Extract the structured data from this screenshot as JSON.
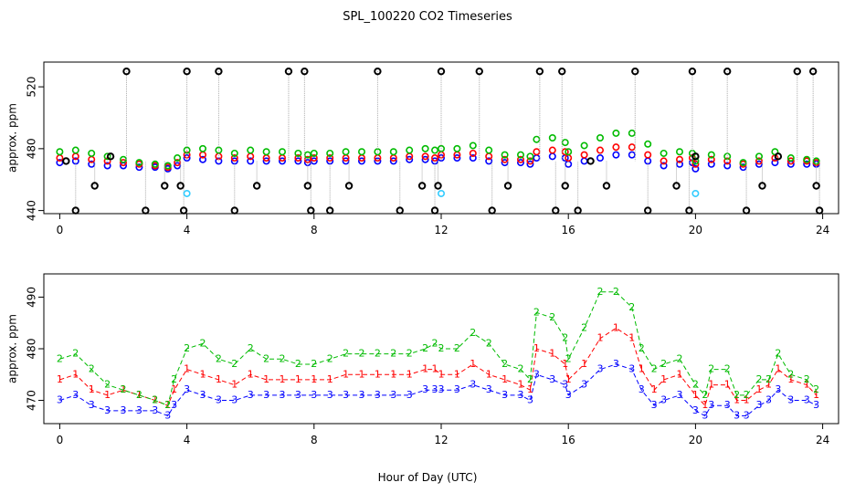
{
  "title": "SPL_100220  CO2 Timeseries",
  "xlabel": "Hour of Day (UTC)",
  "colors": {
    "series1": "#0000ff",
    "series2": "#ff0000",
    "series3": "#00bb00",
    "reference": "#000000",
    "flagged": "#33ccff",
    "dropline": "#aaaaaa"
  },
  "chart_data": [
    {
      "type": "scatter",
      "panel": "top",
      "title": "SPL_100220  CO2 Timeseries",
      "xlabel": "",
      "ylabel": "approx. ppm",
      "xlim": [
        -0.5,
        24.5
      ],
      "ylim": [
        438,
        536
      ],
      "xticks": [
        0,
        4,
        8,
        12,
        16,
        20,
        24
      ],
      "yticks": [
        440,
        480,
        520
      ],
      "xtick_labels": [
        "0",
        "4",
        "8",
        "12",
        "16",
        "20",
        "24"
      ],
      "ytick_labels": [
        "440",
        "480",
        "520"
      ],
      "series": [
        {
          "name": "series1",
          "marker": "circle",
          "color": "#0000ff",
          "x": [
            0,
            0.5,
            1,
            1.5,
            2,
            2.5,
            3,
            3.4,
            3.7,
            4,
            4.5,
            5,
            5.5,
            6,
            6.5,
            7,
            7.5,
            7.8,
            8,
            8.5,
            9,
            9.5,
            10,
            10.5,
            11,
            11.5,
            11.8,
            12,
            12.5,
            13,
            13.5,
            14,
            14.5,
            14.8,
            15,
            15.5,
            15.9,
            16,
            16.5,
            17,
            17.5,
            18,
            18.5,
            19,
            19.5,
            19.9,
            20,
            20.5,
            21,
            21.5,
            22,
            22.5,
            23,
            23.5,
            23.8
          ],
          "y": [
            471,
            472,
            470,
            469,
            469,
            468,
            468,
            467,
            469,
            474,
            473,
            472,
            472,
            472,
            472,
            472,
            472,
            471,
            472,
            472,
            472,
            472,
            472,
            472,
            473,
            473,
            472,
            474,
            474,
            474,
            472,
            471,
            471,
            470,
            474,
            475,
            474,
            470,
            472,
            474,
            476,
            476,
            472,
            469,
            470,
            471,
            467,
            470,
            469,
            468,
            470,
            471,
            470,
            470,
            470
          ]
        },
        {
          "name": "series2",
          "marker": "circle",
          "color": "#ff0000",
          "x": [
            0,
            0.5,
            1,
            1.5,
            2,
            2.5,
            3,
            3.4,
            3.7,
            4,
            4.5,
            5,
            5.5,
            6,
            6.5,
            7,
            7.5,
            7.8,
            8,
            8.5,
            9,
            9.5,
            10,
            10.5,
            11,
            11.5,
            11.8,
            12,
            12.5,
            13,
            13.5,
            14,
            14.5,
            14.8,
            15,
            15.5,
            15.9,
            16,
            16.5,
            17,
            17.5,
            18,
            18.5,
            19,
            19.5,
            19.9,
            20,
            20.5,
            21,
            21.5,
            22,
            22.5,
            23,
            23.5,
            23.8
          ],
          "y": [
            474,
            475,
            473,
            472,
            471,
            470,
            469,
            468,
            471,
            476,
            476,
            475,
            474,
            475,
            474,
            474,
            474,
            473,
            474,
            474,
            474,
            474,
            474,
            474,
            475,
            475,
            474,
            476,
            476,
            477,
            475,
            473,
            473,
            472,
            478,
            479,
            478,
            474,
            476,
            479,
            481,
            481,
            476,
            472,
            473,
            474,
            470,
            473,
            472,
            470,
            472,
            474,
            472,
            472,
            471
          ]
        },
        {
          "name": "series3",
          "marker": "circle",
          "color": "#00bb00",
          "x": [
            0,
            0.5,
            1,
            1.5,
            2,
            2.5,
            3,
            3.4,
            3.7,
            4,
            4.5,
            5,
            5.5,
            6,
            6.5,
            7,
            7.5,
            7.8,
            8,
            8.5,
            9,
            9.5,
            10,
            10.5,
            11,
            11.5,
            11.8,
            12,
            12.5,
            13,
            13.5,
            14,
            14.5,
            14.8,
            15,
            15.5,
            15.9,
            16,
            16.5,
            17,
            17.5,
            18,
            18.5,
            19,
            19.5,
            19.9,
            20,
            20.5,
            21,
            21.5,
            22,
            22.5,
            23,
            23.5,
            23.8
          ],
          "y": [
            478,
            479,
            477,
            475,
            473,
            471,
            470,
            469,
            474,
            479,
            480,
            479,
            477,
            479,
            478,
            478,
            477,
            476,
            477,
            477,
            478,
            478,
            478,
            478,
            479,
            480,
            479,
            480,
            480,
            482,
            479,
            476,
            476,
            475,
            486,
            487,
            484,
            478,
            482,
            487,
            490,
            490,
            483,
            477,
            478,
            477,
            472,
            476,
            475,
            471,
            475,
            478,
            474,
            473,
            472
          ]
        },
        {
          "name": "reference",
          "marker": "circle",
          "color": "#000000",
          "x": [
            0.2,
            0.5,
            1.1,
            1.6,
            2.1,
            2.7,
            3.3,
            3.8,
            3.9,
            4.0,
            5.0,
            5.5,
            6.2,
            7.2,
            7.7,
            7.8,
            7.9,
            8.5,
            9.1,
            10.0,
            10.7,
            11.4,
            11.8,
            11.9,
            12.0,
            13.2,
            13.6,
            14.1,
            15.1,
            15.6,
            15.8,
            15.9,
            16.3,
            16.7,
            17.2,
            18.1,
            18.5,
            19.4,
            19.8,
            19.9,
            20.0,
            21.0,
            21.6,
            22.1,
            22.6,
            23.2,
            23.7,
            23.8,
            23.9
          ],
          "y": [
            472,
            440,
            456,
            475,
            530,
            440,
            456,
            456,
            440,
            530,
            530,
            440,
            456,
            530,
            530,
            456,
            440,
            440,
            456,
            530,
            440,
            456,
            440,
            456,
            530,
            530,
            440,
            456,
            530,
            440,
            530,
            456,
            440,
            472,
            456,
            530,
            440,
            456,
            440,
            530,
            475,
            530,
            440,
            456,
            475,
            530,
            530,
            456,
            440
          ]
        },
        {
          "name": "flagged",
          "marker": "circle",
          "color": "#33ccff",
          "x": [
            4.0,
            12.0,
            20.0
          ],
          "y": [
            451,
            451,
            451
          ]
        }
      ]
    },
    {
      "type": "line",
      "panel": "bottom",
      "title": "",
      "xlabel": "Hour of Day (UTC)",
      "ylabel": "approx. ppm",
      "xlim": [
        -0.5,
        24.5
      ],
      "ylim": [
        465.5,
        494.5
      ],
      "xticks": [
        0,
        4,
        8,
        12,
        16,
        20,
        24
      ],
      "yticks": [
        470,
        480,
        490
      ],
      "xtick_labels": [
        "0",
        "4",
        "8",
        "12",
        "16",
        "20",
        "24"
      ],
      "ytick_labels": [
        "470",
        "480",
        "490"
      ],
      "series": [
        {
          "name": "series1",
          "marker": "3",
          "color": "#0000ff",
          "x": [
            0,
            0.5,
            1,
            1.5,
            2,
            2.5,
            3,
            3.4,
            3.6,
            4,
            4.5,
            5,
            5.5,
            6,
            6.5,
            7,
            7.5,
            8,
            8.5,
            9,
            9.5,
            10,
            10.5,
            11,
            11.5,
            11.8,
            12,
            12.5,
            13,
            13.5,
            14,
            14.5,
            14.8,
            15,
            15.5,
            15.9,
            16,
            16.5,
            17,
            17.5,
            18,
            18.3,
            18.7,
            19,
            19.5,
            20,
            20.3,
            20.5,
            21,
            21.3,
            21.6,
            22,
            22.3,
            22.6,
            23,
            23.5,
            23.8
          ],
          "y": [
            470,
            471,
            469,
            468,
            468,
            468,
            468,
            467,
            469,
            472,
            471,
            470,
            470,
            471,
            471,
            471,
            471,
            471,
            471,
            471,
            471,
            471,
            471,
            471,
            472,
            472,
            472,
            472,
            473,
            472,
            471,
            471,
            470,
            475,
            474,
            473,
            471,
            473,
            476,
            477,
            476,
            472,
            469,
            470,
            471,
            468,
            467,
            469,
            469,
            467,
            467,
            469,
            470,
            472,
            470,
            470,
            469
          ]
        },
        {
          "name": "series2",
          "marker": "1",
          "color": "#ff0000",
          "x": [
            0,
            0.5,
            1,
            1.5,
            2,
            2.5,
            3,
            3.4,
            3.6,
            4,
            4.5,
            5,
            5.5,
            6,
            6.5,
            7,
            7.5,
            8,
            8.5,
            9,
            9.5,
            10,
            10.5,
            11,
            11.5,
            11.8,
            12,
            12.5,
            13,
            13.5,
            14,
            14.5,
            14.8,
            15,
            15.5,
            15.9,
            16,
            16.5,
            17,
            17.5,
            18,
            18.3,
            18.7,
            19,
            19.5,
            20,
            20.3,
            20.5,
            21,
            21.3,
            21.6,
            22,
            22.3,
            22.6,
            23,
            23.5,
            23.8
          ],
          "y": [
            474,
            475,
            472,
            471,
            472,
            471,
            470,
            469,
            472,
            476,
            475,
            474,
            473,
            475,
            474,
            474,
            474,
            474,
            474,
            475,
            475,
            475,
            475,
            475,
            476,
            476,
            475,
            475,
            477,
            475,
            474,
            473,
            472,
            480,
            479,
            477,
            474,
            477,
            482,
            484,
            482,
            476,
            472,
            474,
            475,
            471,
            469,
            473,
            473,
            470,
            470,
            472,
            473,
            476,
            474,
            473,
            471
          ]
        },
        {
          "name": "series3",
          "marker": "2",
          "color": "#00bb00",
          "x": [
            0,
            0.5,
            1,
            1.5,
            2,
            2.5,
            3,
            3.4,
            3.6,
            4,
            4.5,
            5,
            5.5,
            6,
            6.5,
            7,
            7.5,
            8,
            8.5,
            9,
            9.5,
            10,
            10.5,
            11,
            11.5,
            11.8,
            12,
            12.5,
            13,
            13.5,
            14,
            14.5,
            14.8,
            15,
            15.5,
            15.9,
            16,
            16.5,
            17,
            17.5,
            18,
            18.3,
            18.7,
            19,
            19.5,
            20,
            20.3,
            20.5,
            21,
            21.3,
            21.6,
            22,
            22.3,
            22.6,
            23,
            23.5,
            23.8
          ],
          "y": [
            478,
            479,
            476,
            473,
            472,
            471,
            470,
            469,
            474,
            480,
            481,
            478,
            477,
            480,
            478,
            478,
            477,
            477,
            478,
            479,
            479,
            479,
            479,
            479,
            480,
            481,
            480,
            480,
            483,
            481,
            477,
            476,
            474,
            487,
            486,
            482,
            478,
            484,
            491,
            491,
            488,
            480,
            476,
            477,
            478,
            473,
            471,
            476,
            476,
            471,
            471,
            474,
            474,
            479,
            475,
            474,
            472
          ]
        }
      ]
    }
  ]
}
